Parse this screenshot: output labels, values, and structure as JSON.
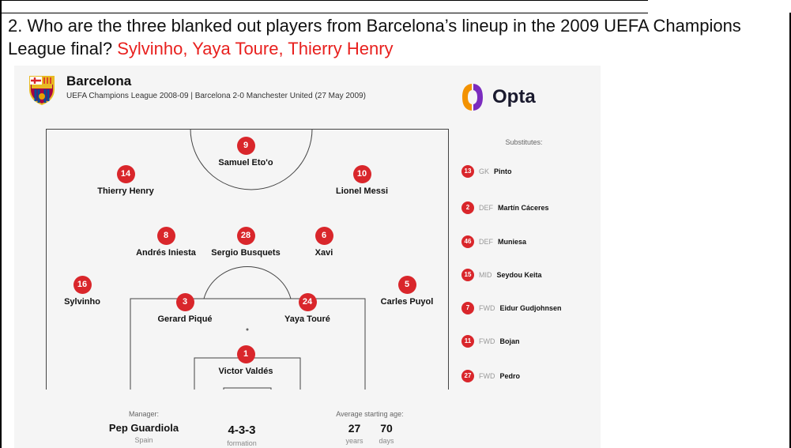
{
  "question": {
    "text": "2. Who are the three blanked out players from Barcelona’s lineup in the 2009 UEFA Champions League final? ",
    "answer": "Sylvinho, Yaya Toure, Thierry Henry"
  },
  "graphic": {
    "team": "Barcelona",
    "subtitle": "UEFA Champions League 2008-09 | Barcelona 2-0 Manchester United (27 May 2009)",
    "brand": "Opta",
    "colors": {
      "badge": "#d9262b",
      "brand_orange": "#f39200",
      "brand_purple": "#7b2cbf",
      "answer": "#e8201e"
    },
    "players": [
      {
        "number": "14",
        "name": "Thierry Henry"
      },
      {
        "number": "9",
        "name": "Samuel Eto'o"
      },
      {
        "number": "10",
        "name": "Lionel Messi"
      },
      {
        "number": "8",
        "name": "Andrés Iniesta"
      },
      {
        "number": "28",
        "name": "Sergio Busquets"
      },
      {
        "number": "6",
        "name": "Xavi"
      },
      {
        "number": "16",
        "name": "Sylvinho"
      },
      {
        "number": "3",
        "name": "Gerard Piqué"
      },
      {
        "number": "24",
        "name": "Yaya Touré"
      },
      {
        "number": "5",
        "name": "Carles Puyol"
      },
      {
        "number": "1",
        "name": "Victor Valdés"
      }
    ],
    "substitutes_title": "Substitutes:",
    "substitutes": [
      {
        "number": "13",
        "position": "GK",
        "name": "Pinto"
      },
      {
        "number": "2",
        "position": "DEF",
        "name": "Martín Cáceres"
      },
      {
        "number": "46",
        "position": "DEF",
        "name": "Muniesa"
      },
      {
        "number": "15",
        "position": "MID",
        "name": "Seydou Keita"
      },
      {
        "number": "7",
        "position": "FWD",
        "name": "Eidur Gudjohnsen"
      },
      {
        "number": "11",
        "position": "FWD",
        "name": "Bojan"
      },
      {
        "number": "27",
        "position": "FWD",
        "name": "Pedro"
      }
    ],
    "manager_label": "Manager:",
    "manager_name": "Pep Guardiola",
    "manager_country": "Spain",
    "formation": "4-3-3",
    "formation_label": "formation",
    "age_label": "Average starting age:",
    "age_years": "27",
    "age_years_label": "years",
    "age_days": "70",
    "age_days_label": "days"
  }
}
